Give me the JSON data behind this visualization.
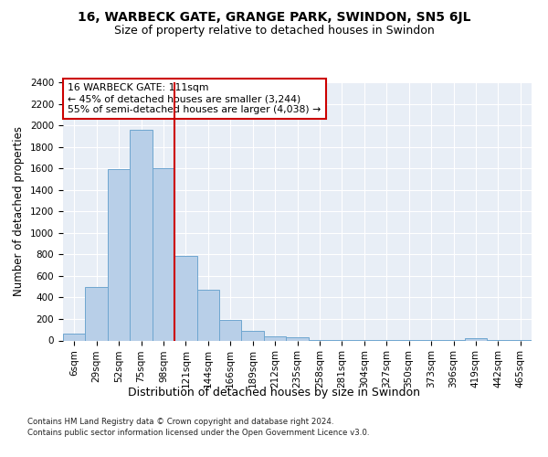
{
  "title": "16, WARBECK GATE, GRANGE PARK, SWINDON, SN5 6JL",
  "subtitle": "Size of property relative to detached houses in Swindon",
  "xlabel": "Distribution of detached houses by size in Swindon",
  "ylabel": "Number of detached properties",
  "categories": [
    "6sqm",
    "29sqm",
    "52sqm",
    "75sqm",
    "98sqm",
    "121sqm",
    "144sqm",
    "166sqm",
    "189sqm",
    "212sqm",
    "235sqm",
    "258sqm",
    "281sqm",
    "304sqm",
    "327sqm",
    "350sqm",
    "373sqm",
    "396sqm",
    "419sqm",
    "442sqm",
    "465sqm"
  ],
  "values": [
    60,
    500,
    1590,
    1960,
    1600,
    790,
    470,
    195,
    90,
    35,
    28,
    5,
    5,
    5,
    5,
    5,
    5,
    5,
    22,
    5,
    5
  ],
  "bar_color": "#b8cfe8",
  "bar_edge_color": "#6ea6d0",
  "vline_x": 4.5,
  "vline_color": "#cc0000",
  "annotation_text": "16 WARBECK GATE: 111sqm\n← 45% of detached houses are smaller (3,244)\n55% of semi-detached houses are larger (4,038) →",
  "annotation_box_color": "#ffffff",
  "annotation_box_edgecolor": "#cc0000",
  "footnote1": "Contains HM Land Registry data © Crown copyright and database right 2024.",
  "footnote2": "Contains public sector information licensed under the Open Government Licence v3.0.",
  "ylim": [
    0,
    2400
  ],
  "yticks": [
    0,
    200,
    400,
    600,
    800,
    1000,
    1200,
    1400,
    1600,
    1800,
    2000,
    2200,
    2400
  ],
  "background_color": "#e8eef6",
  "fig_background": "#ffffff",
  "title_fontsize": 10,
  "subtitle_fontsize": 9,
  "axis_label_fontsize": 8.5,
  "tick_fontsize": 7.5,
  "footnote_fontsize": 6.2
}
